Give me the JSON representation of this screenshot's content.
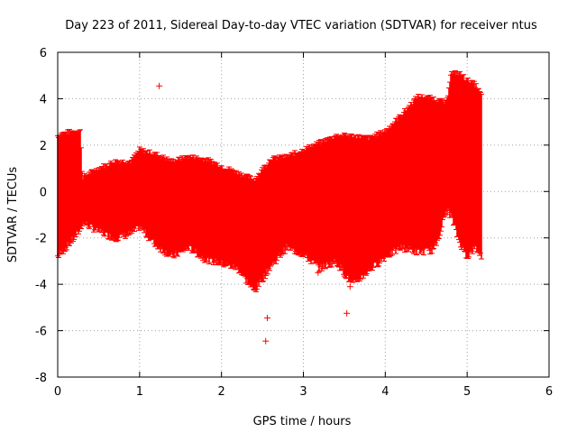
{
  "chart_data": {
    "type": "scatter",
    "title": "Day 223 of 2011, Sidereal Day-to-day VTEC variation (SDTVAR) for receiver ntus",
    "xlabel": "GPS time / hours",
    "ylabel": "SDTVAR / TECUs",
    "xlim": [
      0,
      6
    ],
    "ylim": [
      -8,
      6
    ],
    "xticks": [
      "0",
      "1",
      "2",
      "3",
      "4",
      "5",
      "6"
    ],
    "yticks": [
      "6",
      "4",
      "2",
      "0",
      "-2",
      "-4",
      "-6",
      "-8"
    ],
    "grid": true,
    "marker": "+",
    "color": "#ff0000",
    "envelope": {
      "x": [
        0.0,
        0.05,
        0.2,
        0.28,
        0.3,
        0.5,
        0.7,
        0.9,
        1.0,
        1.2,
        1.4,
        1.6,
        1.8,
        2.0,
        2.2,
        2.4,
        2.6,
        2.8,
        3.0,
        3.2,
        3.4,
        3.6,
        3.8,
        4.0,
        4.2,
        4.4,
        4.6,
        4.75,
        4.8,
        4.9,
        5.0,
        5.1,
        5.18
      ],
      "upper": [
        2.4,
        2.5,
        2.6,
        2.6,
        0.6,
        1.0,
        1.3,
        1.3,
        1.8,
        1.6,
        1.3,
        1.5,
        1.4,
        1.1,
        0.8,
        0.5,
        1.4,
        1.5,
        1.8,
        2.1,
        2.4,
        2.4,
        2.3,
        2.6,
        3.3,
        4.1,
        4.0,
        3.8,
        5.1,
        5.1,
        4.8,
        4.6,
        4.1
      ],
      "lower": [
        -2.8,
        -2.6,
        -2.0,
        -1.6,
        -1.3,
        -1.7,
        -2.0,
        -1.8,
        -1.5,
        -2.3,
        -2.8,
        -2.4,
        -2.9,
        -3.1,
        -3.3,
        -4.3,
        -3.2,
        -2.4,
        -2.7,
        -3.3,
        -3.0,
        -4.0,
        -3.4,
        -2.8,
        -2.4,
        -2.6,
        -2.5,
        -0.8,
        -1.0,
        -2.1,
        -2.8,
        -2.4,
        -2.8
      ]
    },
    "outliers": [
      {
        "x": 1.24,
        "y": 4.55
      },
      {
        "x": 2.54,
        "y": -6.45
      },
      {
        "x": 2.56,
        "y": -5.45
      },
      {
        "x": 3.53,
        "y": -5.25
      },
      {
        "x": 3.18,
        "y": -3.5
      },
      {
        "x": 3.57,
        "y": -4.1
      },
      {
        "x": 4.95,
        "y": -2.3
      }
    ]
  }
}
